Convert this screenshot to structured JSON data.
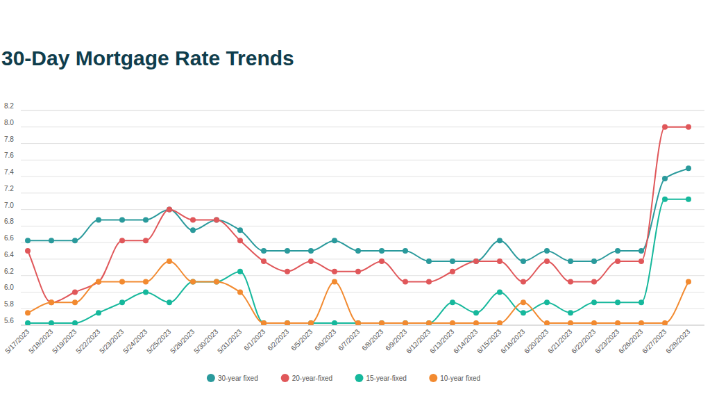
{
  "chart_data": {
    "type": "line",
    "title": "30-Day Mortgage Rate Trends",
    "categories": [
      "5/17/2023",
      "5/18/2023",
      "5/19/2023",
      "5/22/2023",
      "5/23/2023",
      "5/24/2023",
      "5/25/2023",
      "5/26/2023",
      "5/30/2023",
      "5/31/2023",
      "6/1/2023",
      "6/2/2023",
      "6/5/2023",
      "6/6/2023",
      "6/7/2023",
      "6/8/2023",
      "6/9/2023",
      "6/12/2023",
      "6/13/2023",
      "6/14/2023",
      "6/15/2023",
      "6/16/2023",
      "6/20/2023",
      "6/21/2023",
      "6/22/2023",
      "6/23/2023",
      "6/26/2023",
      "6/27/2023",
      "6/28/2023"
    ],
    "series": [
      {
        "name": "30-year fixed",
        "color": "#2a9a9c",
        "values": [
          6.625,
          6.625,
          6.625,
          6.875,
          6.875,
          6.875,
          7.0,
          6.75,
          6.875,
          6.75,
          6.5,
          6.5,
          6.5,
          6.625,
          6.5,
          6.5,
          6.5,
          6.375,
          6.375,
          6.375,
          6.625,
          6.375,
          6.5,
          6.375,
          6.375,
          6.5,
          6.5,
          7.375,
          7.5
        ]
      },
      {
        "name": "20-year-fixed",
        "color": "#e0575a",
        "values": [
          6.5,
          5.875,
          6.0,
          6.125,
          6.625,
          6.625,
          7.0,
          6.875,
          6.875,
          6.625,
          6.375,
          6.25,
          6.375,
          6.25,
          6.25,
          6.375,
          6.125,
          6.125,
          6.25,
          6.375,
          6.375,
          6.125,
          6.375,
          6.125,
          6.125,
          6.375,
          6.375,
          8.0,
          8.0
        ]
      },
      {
        "name": "15-year-fixed",
        "color": "#16b89c",
        "values": [
          5.625,
          5.625,
          5.625,
          5.75,
          5.875,
          6.0,
          5.875,
          6.125,
          6.125,
          6.25,
          5.625,
          5.625,
          5.625,
          5.625,
          5.625,
          5.625,
          5.625,
          5.625,
          5.875,
          5.75,
          6.0,
          5.75,
          5.875,
          5.75,
          5.875,
          5.875,
          5.875,
          7.125,
          7.125
        ]
      },
      {
        "name": "10-year fixed",
        "color": "#f28a30",
        "values": [
          5.75,
          5.875,
          5.875,
          6.125,
          6.125,
          6.125,
          6.375,
          6.125,
          6.125,
          6.0,
          5.625,
          5.625,
          5.625,
          6.125,
          5.625,
          5.625,
          5.625,
          5.625,
          5.625,
          5.625,
          5.625,
          5.875,
          5.625,
          5.625,
          5.625,
          5.625,
          5.625,
          5.625,
          6.125
        ]
      }
    ],
    "ylim": [
      5.6,
      8.2
    ],
    "yticks": [
      5.6,
      5.8,
      {
        "value": 6.0,
        "label": "6.0"
      },
      6.2,
      6.4,
      6.6,
      6.8,
      {
        "value": 7.0,
        "label": "7.0"
      },
      7.2,
      7.4,
      7.6,
      7.8,
      {
        "value": 8.0,
        "label": "8.0"
      },
      8.2
    ],
    "grid": true,
    "legend": "bottom",
    "marker": "circle"
  }
}
